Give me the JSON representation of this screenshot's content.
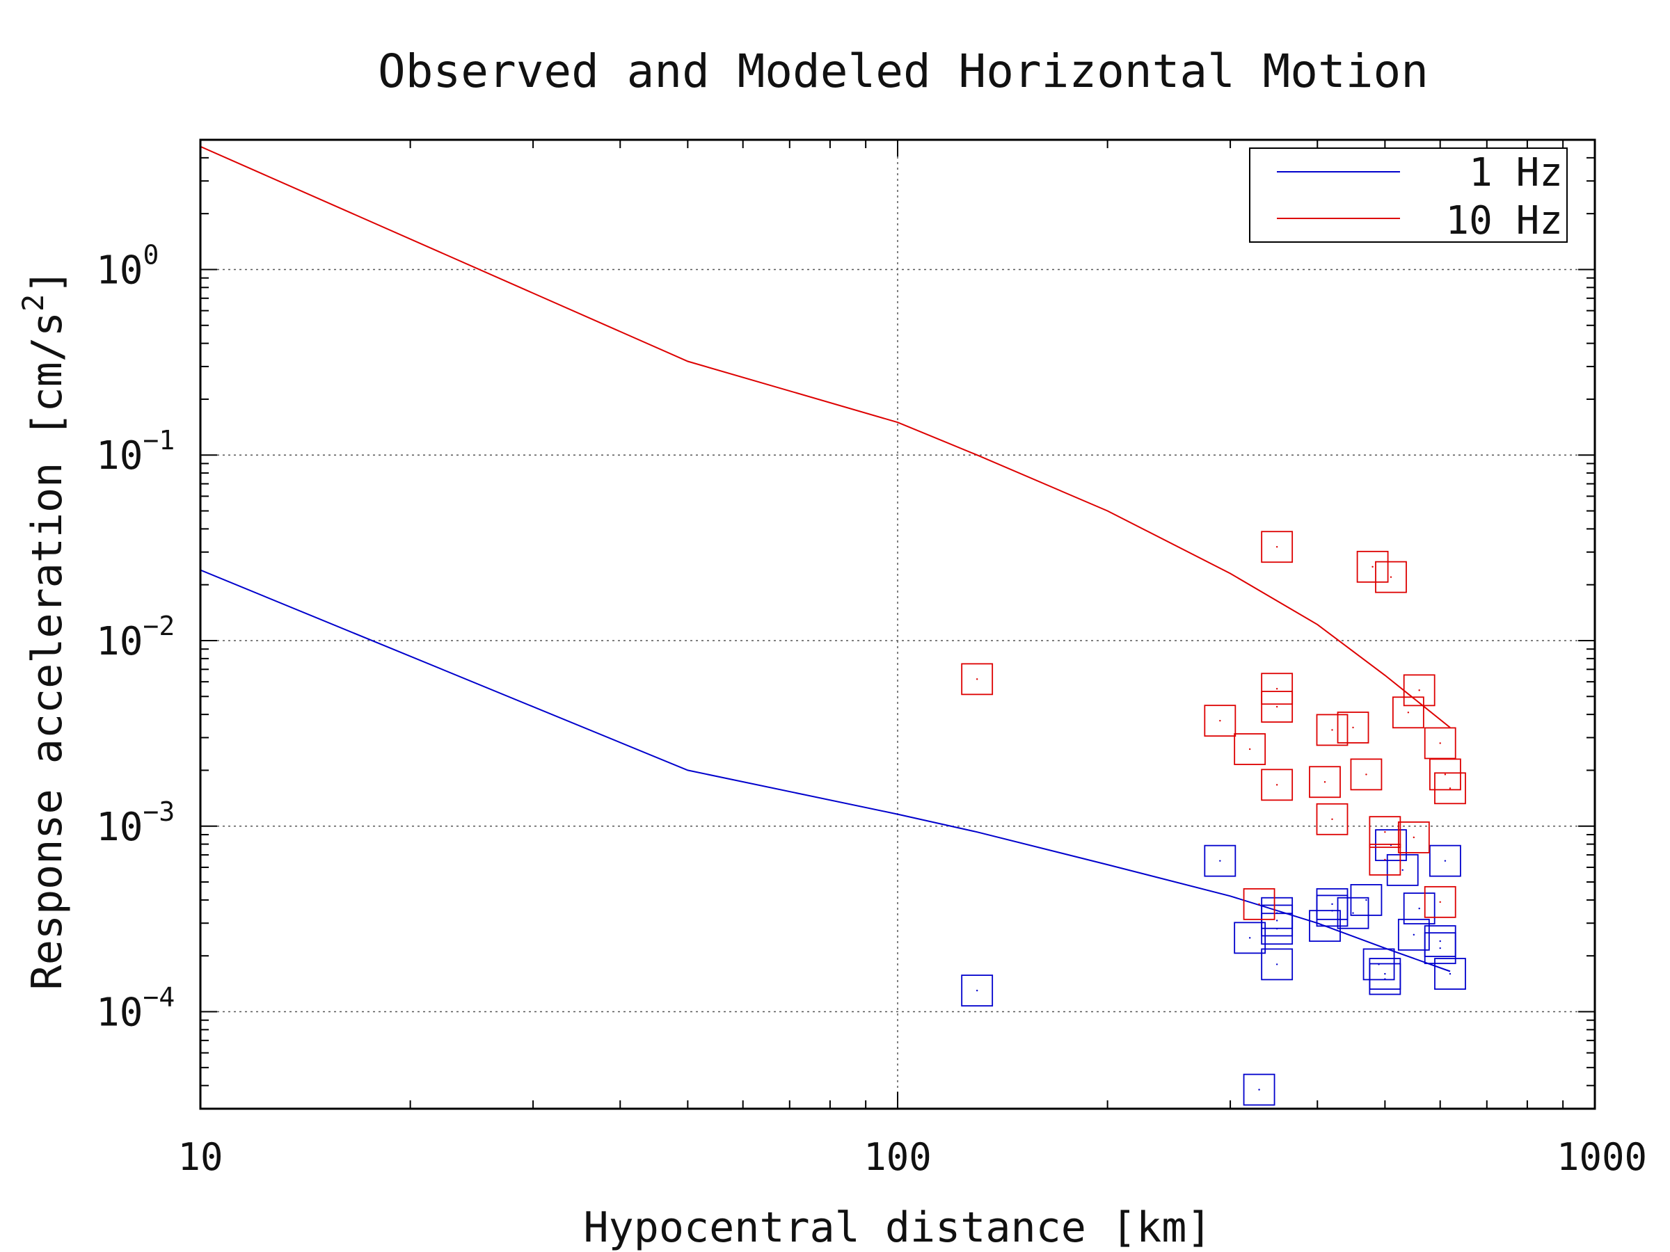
{
  "chart_data": {
    "type": "scatter",
    "title": "Observed and Modeled Horizontal Motion",
    "xlabel": "Hypocentral distance [km]",
    "ylabel": "Response acceleration [cm/s",
    "ylabel_sup": "2",
    "ylabel_end": "]",
    "x_scale": "log",
    "y_scale": "log",
    "xlim": [
      10,
      1000
    ],
    "ylim": [
      3e-05,
      5.0
    ],
    "x_ticks": [
      {
        "value": 10,
        "label": "10"
      },
      {
        "value": 100,
        "label": "100"
      },
      {
        "value": 1000,
        "label": "1000"
      }
    ],
    "y_ticks": [
      {
        "value": 1,
        "base": "10",
        "exp": "0"
      },
      {
        "value": 0.1,
        "base": "10",
        "exp": "−1"
      },
      {
        "value": 0.01,
        "base": "10",
        "exp": "−2"
      },
      {
        "value": 0.001,
        "base": "10",
        "exp": "−3"
      },
      {
        "value": 0.0001,
        "base": "10",
        "exp": "−4"
      }
    ],
    "grid": true,
    "legend_position": "top-right",
    "series": [
      {
        "name": "1 Hz",
        "kind": "model-line",
        "color": "#0000cc",
        "points": [
          [
            10,
            0.024
          ],
          [
            50,
            0.002
          ],
          [
            100,
            0.00116
          ],
          [
            130,
            0.00093
          ],
          [
            200,
            0.00062
          ],
          [
            300,
            0.00042
          ],
          [
            400,
            0.0003
          ],
          [
            500,
            0.00022
          ],
          [
            620,
            0.000165
          ]
        ]
      },
      {
        "name": "10 Hz",
        "kind": "model-line",
        "color": "#dd0000",
        "points": [
          [
            10,
            4.6
          ],
          [
            50,
            0.32
          ],
          [
            100,
            0.15
          ],
          [
            130,
            0.1
          ],
          [
            200,
            0.05
          ],
          [
            300,
            0.023
          ],
          [
            400,
            0.0122
          ],
          [
            500,
            0.0065
          ],
          [
            620,
            0.0034
          ]
        ]
      },
      {
        "name": "1 Hz observed",
        "kind": "observed",
        "color": "#0000cc",
        "points": [
          [
            130,
            0.00013
          ],
          [
            290,
            0.00065
          ],
          [
            330,
            3.8e-05
          ],
          [
            320,
            0.00025
          ],
          [
            350,
            0.00034
          ],
          [
            350,
            0.00031
          ],
          [
            350,
            0.00028
          ],
          [
            350,
            0.00018
          ],
          [
            410,
            0.00029
          ],
          [
            420,
            0.00038
          ],
          [
            420,
            0.00035
          ],
          [
            450,
            0.00034
          ],
          [
            470,
            0.0004
          ],
          [
            490,
            0.00018
          ],
          [
            500,
            0.00016
          ],
          [
            500,
            0.00015
          ],
          [
            510,
            0.00079
          ],
          [
            530,
            0.00058
          ],
          [
            550,
            0.00026
          ],
          [
            560,
            0.00036
          ],
          [
            600,
            0.00024
          ],
          [
            600,
            0.00022
          ],
          [
            610,
            0.00065
          ],
          [
            620,
            0.00016
          ]
        ]
      },
      {
        "name": "10 Hz observed",
        "kind": "observed",
        "color": "#dd0000",
        "points": [
          [
            130,
            0.0062
          ],
          [
            290,
            0.0037
          ],
          [
            320,
            0.0026
          ],
          [
            330,
            0.00038
          ],
          [
            350,
            0.032
          ],
          [
            350,
            0.0055
          ],
          [
            350,
            0.0044
          ],
          [
            350,
            0.00167
          ],
          [
            410,
            0.00173
          ],
          [
            420,
            0.0033
          ],
          [
            420,
            0.00109
          ],
          [
            450,
            0.0034
          ],
          [
            470,
            0.0019
          ],
          [
            480,
            0.025
          ],
          [
            500,
            0.00093
          ],
          [
            500,
            0.00066
          ],
          [
            510,
            0.022
          ],
          [
            540,
            0.0041
          ],
          [
            550,
            0.00087
          ],
          [
            560,
            0.0054
          ],
          [
            600,
            0.0028
          ],
          [
            600,
            0.00039
          ],
          [
            610,
            0.0019
          ],
          [
            620,
            0.0016
          ]
        ]
      }
    ]
  }
}
